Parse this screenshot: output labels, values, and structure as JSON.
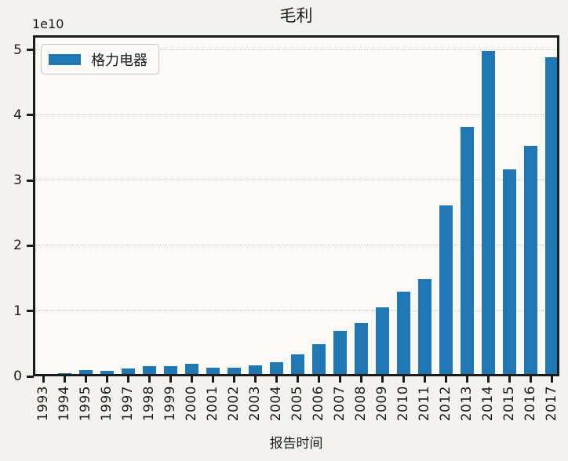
{
  "figure": {
    "title": "毛利",
    "y_offset_label": "1e10",
    "x_axis_label": "报告时间",
    "legend": {
      "series_label": "格力电器"
    }
  },
  "chart_data": {
    "type": "bar",
    "title": "毛利",
    "xlabel": "报告时间",
    "ylabel": "",
    "y_unit_multiplier": "1e10",
    "legend_entries": [
      {
        "label": "格力电器",
        "color": "#1f77b4"
      }
    ],
    "legend_position": "upper left",
    "grid": "horizontal dotted",
    "bar_color": "#1f77b4",
    "ylim": [
      0,
      5.22
    ],
    "yticks": [
      0,
      1,
      2,
      3,
      4,
      5
    ],
    "categories": [
      "1993",
      "1994",
      "1995",
      "1996",
      "1997",
      "1998",
      "1999",
      "2000",
      "2001",
      "2002",
      "2003",
      "2004",
      "2005",
      "2006",
      "2007",
      "2008",
      "2009",
      "2010",
      "2011",
      "2012",
      "2013",
      "2014",
      "2015",
      "2016",
      "2017"
    ],
    "values_1e10": [
      0.01,
      0.05,
      0.1,
      0.08,
      0.12,
      0.16,
      0.16,
      0.19,
      0.13,
      0.13,
      0.17,
      0.22,
      0.34,
      0.49,
      0.7,
      0.82,
      1.06,
      1.3,
      1.49,
      2.62,
      3.82,
      4.98,
      3.17,
      3.53,
      4.88
    ]
  }
}
